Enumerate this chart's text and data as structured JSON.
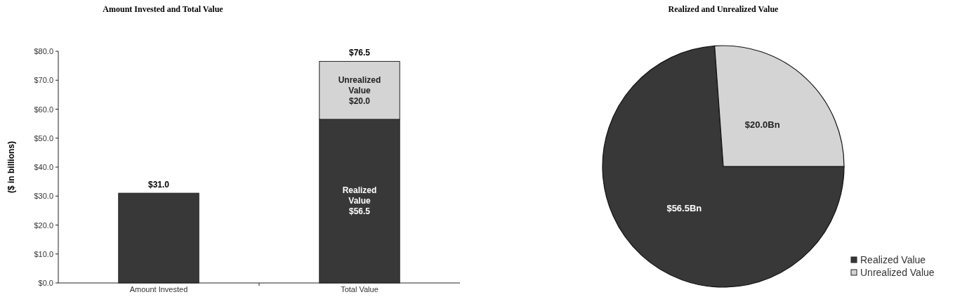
{
  "chart_data": [
    {
      "type": "bar",
      "title": "Amount Invested and Total Value",
      "ylabel": "($ in billions)",
      "categories": [
        "Amount Invested",
        "Total Value"
      ],
      "stacked": true,
      "legend": false,
      "grid": false,
      "series": [
        {
          "color": "#383838",
          "values": [
            31.0,
            null
          ]
        },
        {
          "name": "Realized Value",
          "color": "#383838",
          "values": [
            null,
            56.5
          ],
          "value_labels": [
            null,
            "$56.5"
          ]
        },
        {
          "name": "Unrealized Value",
          "color": "#d4d4d4",
          "values": [
            null,
            20.0
          ],
          "value_labels": [
            null,
            "$20.0"
          ]
        }
      ],
      "totals": [
        "$31.0",
        "$76.5"
      ],
      "ylim": [
        0,
        80
      ],
      "yticks": [
        {
          "value": 0,
          "label": "$0.0"
        },
        {
          "value": 10,
          "label": "$10.0"
        },
        {
          "value": 20,
          "label": "$20.0"
        },
        {
          "value": 30,
          "label": "$30.0"
        },
        {
          "value": 40,
          "label": "$40.0"
        },
        {
          "value": 50,
          "label": "$50.0"
        },
        {
          "value": 60,
          "label": "$60.0"
        },
        {
          "value": 70,
          "label": "$70.0"
        },
        {
          "value": 80,
          "label": "$80.0"
        }
      ]
    },
    {
      "type": "pie",
      "title": "Realized and Unrealized Value",
      "categories": [
        "Realized Value",
        "Unrealized Value"
      ],
      "values": [
        56.5,
        20.0
      ],
      "colors": [
        "#383838",
        "#d4d4d4"
      ],
      "value_labels": [
        "$56.5Bn",
        "$20.0Bn"
      ],
      "legend": "bottom right"
    }
  ]
}
